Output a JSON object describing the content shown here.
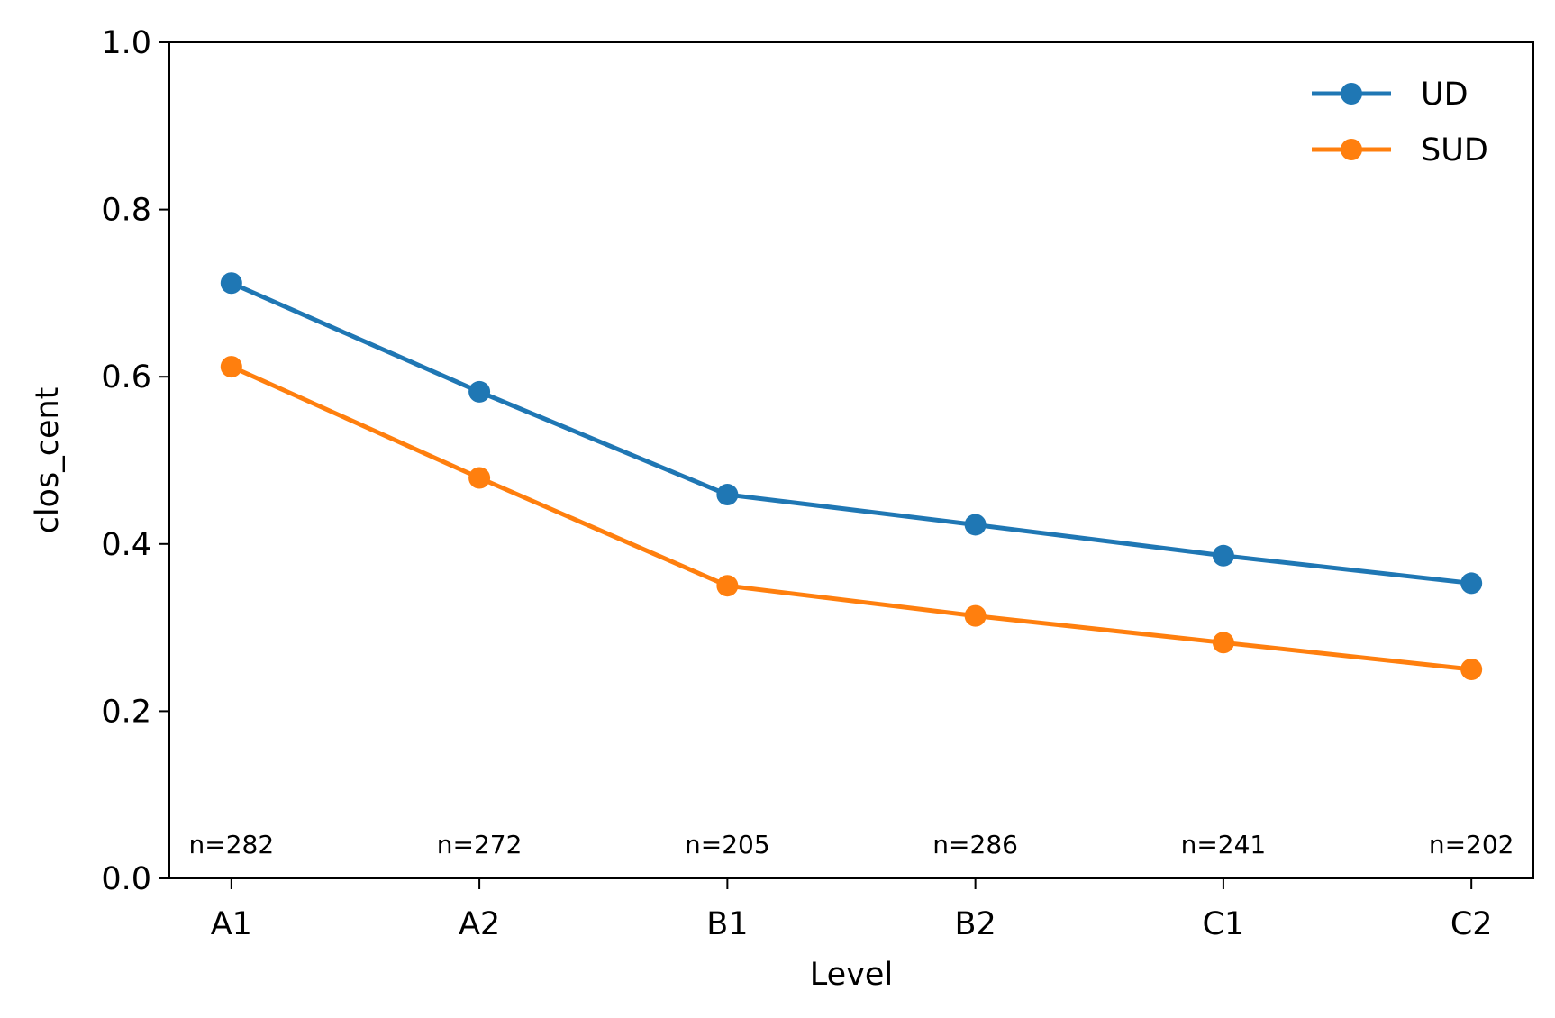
{
  "chart_data": {
    "type": "line",
    "title": "",
    "xlabel": "Level",
    "ylabel": "clos_cent",
    "categories": [
      "A1",
      "A2",
      "B1",
      "B2",
      "C1",
      "C2"
    ],
    "ylim": [
      0.0,
      1.0
    ],
    "yticks": [
      "0.0",
      "0.2",
      "0.4",
      "0.6",
      "0.8",
      "1.0"
    ],
    "grid": false,
    "legend_position": "top-right",
    "series": [
      {
        "name": "UD",
        "color": "#1f77b4",
        "marker": "circle",
        "values": [
          0.712,
          0.582,
          0.459,
          0.423,
          0.386,
          0.353
        ]
      },
      {
        "name": "SUD",
        "color": "#ff7f0e",
        "marker": "circle",
        "values": [
          0.612,
          0.479,
          0.35,
          0.314,
          0.282,
          0.25
        ]
      }
    ],
    "annotations": [
      "n=282",
      "n=272",
      "n=205",
      "n=286",
      "n=241",
      "n=202"
    ]
  }
}
